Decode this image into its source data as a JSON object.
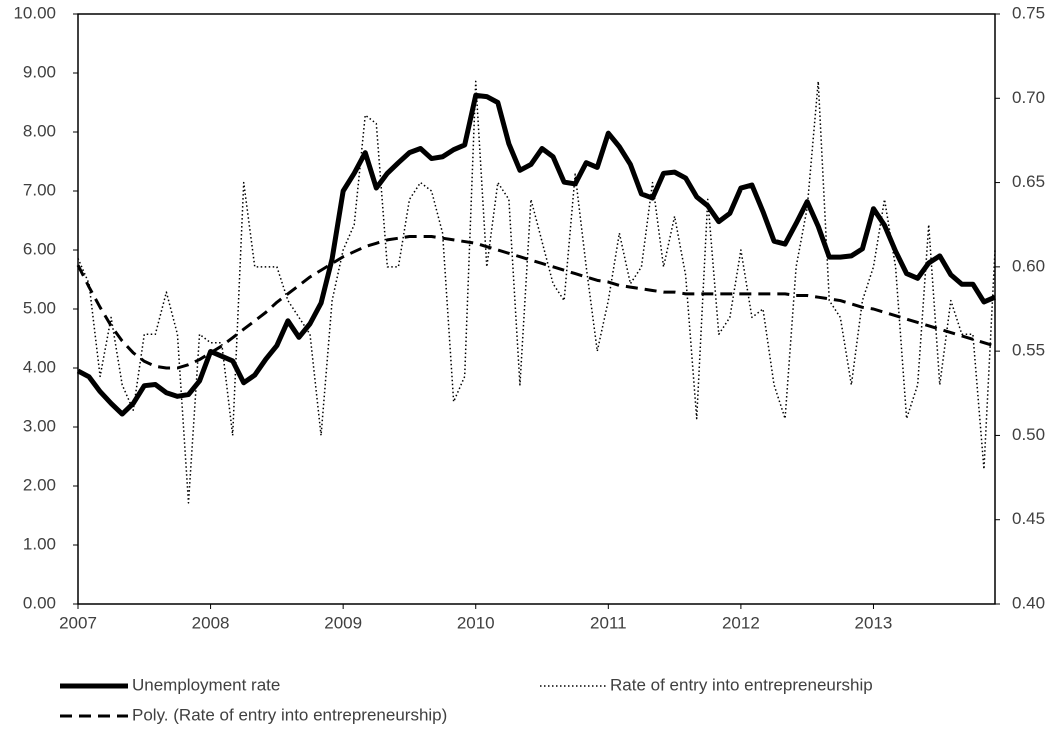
{
  "chart_data": {
    "type": "line",
    "categories": [
      "2007",
      null,
      null,
      null,
      null,
      null,
      null,
      null,
      null,
      null,
      null,
      null,
      "2008",
      null,
      null,
      null,
      null,
      null,
      null,
      null,
      null,
      null,
      null,
      null,
      "2009",
      null,
      null,
      null,
      null,
      null,
      null,
      null,
      null,
      null,
      null,
      null,
      "2010",
      null,
      null,
      null,
      null,
      null,
      null,
      null,
      null,
      null,
      null,
      null,
      "2011",
      null,
      null,
      null,
      null,
      null,
      null,
      null,
      null,
      null,
      null,
      null,
      "2012",
      null,
      null,
      null,
      null,
      null,
      null,
      null,
      null,
      null,
      null,
      null,
      "2013",
      null,
      null,
      null,
      null,
      null,
      null,
      null,
      null,
      null,
      null,
      null
    ],
    "ylim": [
      0,
      10
    ],
    "yticks": [
      {
        "value": 0,
        "label": "0.00"
      },
      {
        "value": 1,
        "label": "1.00"
      },
      {
        "value": 2,
        "label": "2.00"
      },
      {
        "value": 3,
        "label": "3.00"
      },
      {
        "value": 4,
        "label": "4.00"
      },
      {
        "value": 5,
        "label": "5.00"
      },
      {
        "value": 6,
        "label": "6.00"
      },
      {
        "value": 7,
        "label": "7.00"
      },
      {
        "value": 8,
        "label": "8.00"
      },
      {
        "value": 9,
        "label": "9.00"
      },
      {
        "value": 10,
        "label": "10.00"
      }
    ],
    "y2lim": [
      0.4,
      0.75
    ],
    "y2ticks": [
      {
        "value": 0.4,
        "label": "0.40"
      },
      0.45,
      {
        "value": 0.5,
        "label": "0.50"
      },
      0.55,
      {
        "value": 0.6,
        "label": "0.60"
      },
      0.65,
      {
        "value": 0.7,
        "label": "0.70"
      },
      0.75
    ],
    "grid": false,
    "series": [
      {
        "name": "Unemployment rate",
        "color": "#000000",
        "style": "solid",
        "width": 5,
        "axis": "y",
        "values": [
          3.95,
          3.85,
          3.6,
          3.4,
          3.22,
          3.4,
          3.7,
          3.72,
          3.58,
          3.52,
          3.55,
          3.78,
          4.28,
          4.2,
          4.12,
          3.75,
          3.88,
          4.15,
          4.38,
          4.8,
          4.52,
          4.75,
          5.1,
          5.85,
          7.0,
          7.3,
          7.65,
          7.05,
          7.3,
          7.48,
          7.65,
          7.72,
          7.55,
          7.58,
          7.7,
          7.78,
          8.62,
          8.6,
          8.5,
          7.8,
          7.35,
          7.45,
          7.72,
          7.58,
          7.15,
          7.12,
          7.48,
          7.4,
          7.98,
          7.75,
          7.45,
          6.95,
          6.88,
          7.3,
          7.32,
          7.22,
          6.9,
          6.75,
          6.48,
          6.62,
          7.05,
          7.1,
          6.65,
          6.15,
          6.1,
          6.45,
          6.82,
          6.4,
          5.88,
          5.88,
          5.9,
          6.02,
          6.7,
          6.42,
          5.98,
          5.6,
          5.52,
          5.78,
          5.9,
          5.58,
          5.42,
          5.42,
          5.12,
          5.2
        ]
      },
      {
        "name": "Rate of entry into entrepreneurship",
        "color": "#000000",
        "style": "dotted",
        "width": 1.5,
        "axis": "y2",
        "values": [
          0.605,
          0.59,
          0.535,
          0.57,
          0.53,
          0.515,
          0.56,
          0.56,
          0.585,
          0.56,
          0.46,
          0.56,
          0.555,
          0.555,
          0.5,
          0.65,
          0.6,
          0.6,
          0.6,
          0.58,
          0.57,
          0.56,
          0.5,
          0.58,
          0.61,
          0.625,
          0.69,
          0.685,
          0.6,
          0.6,
          0.64,
          0.65,
          0.645,
          0.62,
          0.52,
          0.535,
          0.71,
          0.6,
          0.65,
          0.64,
          0.53,
          0.64,
          0.615,
          0.59,
          0.58,
          0.655,
          0.6,
          0.55,
          0.58,
          0.62,
          0.59,
          0.6,
          0.65,
          0.6,
          0.63,
          0.595,
          0.51,
          0.64,
          0.56,
          0.57,
          0.61,
          0.57,
          0.575,
          0.53,
          0.51,
          0.6,
          0.635,
          0.71,
          0.58,
          0.57,
          0.53,
          0.58,
          0.6,
          0.64,
          0.6,
          0.51,
          0.53,
          0.625,
          0.53,
          0.58,
          0.56,
          0.56,
          0.48,
          0.61
        ]
      },
      {
        "name": "Poly. (Rate of entry into entrepreneurship)",
        "color": "#000000",
        "style": "dashed",
        "width": 3,
        "axis": "y2",
        "values": [
          0.601,
          0.588,
          0.576,
          0.565,
          0.556,
          0.549,
          0.544,
          0.541,
          0.54,
          0.54,
          0.542,
          0.545,
          0.549,
          0.553,
          0.558,
          0.563,
          0.568,
          0.573,
          0.579,
          0.584,
          0.589,
          0.594,
          0.598,
          0.602,
          0.606,
          0.609,
          0.612,
          0.614,
          0.616,
          0.617,
          0.618,
          0.618,
          0.618,
          0.617,
          0.616,
          0.615,
          0.614,
          0.612,
          0.61,
          0.608,
          0.606,
          0.604,
          0.602,
          0.6,
          0.598,
          0.596,
          0.594,
          0.592,
          0.591,
          0.589,
          0.588,
          0.587,
          0.586,
          0.585,
          0.585,
          0.584,
          0.584,
          0.584,
          0.584,
          0.584,
          0.584,
          0.584,
          0.584,
          0.584,
          0.584,
          0.583,
          0.583,
          0.582,
          0.581,
          0.58,
          0.578,
          0.576,
          0.575,
          0.573,
          0.571,
          0.569,
          0.567,
          0.565,
          0.563,
          0.561,
          0.559,
          0.557,
          0.555,
          0.553
        ]
      }
    ]
  }
}
